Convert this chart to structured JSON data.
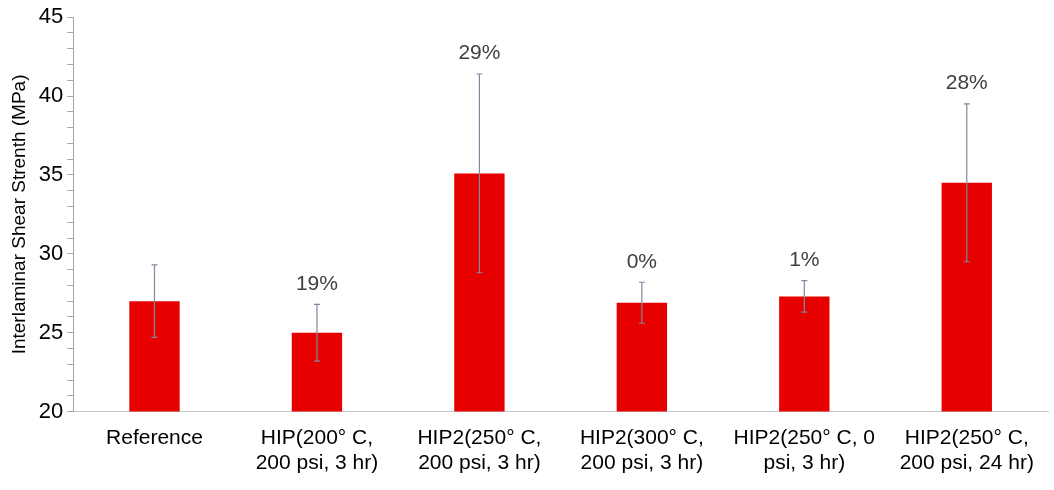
{
  "chart_data": {
    "type": "bar",
    "ylabel": "Interlaminar Shear Strenth (MPa)",
    "categories": [
      "Reference",
      "HIP(200° C, 200 psi, 3 hr)",
      "HIP2(250° C, 200 psi, 3 hr)",
      "HIP2(300° C, 200 psi, 3 hr)",
      "HIP2(250° C, 0 psi, 3 hr)",
      "HIP2(250° C, 200 psi, 24 hr)"
    ],
    "values": [
      27.0,
      25.0,
      35.1,
      26.9,
      27.3,
      34.5
    ],
    "errors": [
      2.3,
      1.8,
      6.3,
      1.3,
      1.0,
      5.0
    ],
    "annotations": [
      {
        "text": "19%",
        "x": "HIP(200° C, 200 psi, 3 hr)",
        "y": 26.8
      },
      {
        "text": "29%",
        "x": "HIP2(250° C, 200 psi, 3 hr)",
        "y": 41.4
      },
      {
        "text": "0%",
        "x": "HIP2(300° C, 200 psi, 3 hr)",
        "y": 28.2
      },
      {
        "text": "1%",
        "x": "HIP2(250° C, 0 psi, 3 hr)",
        "y": 28.3
      },
      {
        "text": "28%",
        "x": "HIP2(250° C, 200 psi, 24 hr)",
        "y": 39.5
      }
    ],
    "color": "#e60000",
    "ylim": [
      20,
      45
    ],
    "yticks": [
      20,
      {
        "value": 21,
        "label": null
      },
      {
        "value": 22,
        "label": null
      },
      {
        "value": 23,
        "label": null
      },
      {
        "value": 24,
        "label": null
      },
      25,
      {
        "value": 26,
        "label": null
      },
      {
        "value": 27,
        "label": null
      },
      {
        "value": 28,
        "label": null
      },
      {
        "value": 29,
        "label": null
      },
      30,
      {
        "value": 31,
        "label": null
      },
      {
        "value": 32,
        "label": null
      },
      {
        "value": 33,
        "label": null
      },
      {
        "value": 34,
        "label": null
      },
      35,
      {
        "value": 36,
        "label": null
      },
      {
        "value": 37,
        "label": null
      },
      {
        "value": 38,
        "label": null
      },
      {
        "value": 39,
        "label": null
      },
      40,
      {
        "value": 41,
        "label": null
      },
      {
        "value": 42,
        "label": null
      },
      {
        "value": 43,
        "label": null
      },
      {
        "value": 44,
        "label": null
      },
      45
    ]
  }
}
